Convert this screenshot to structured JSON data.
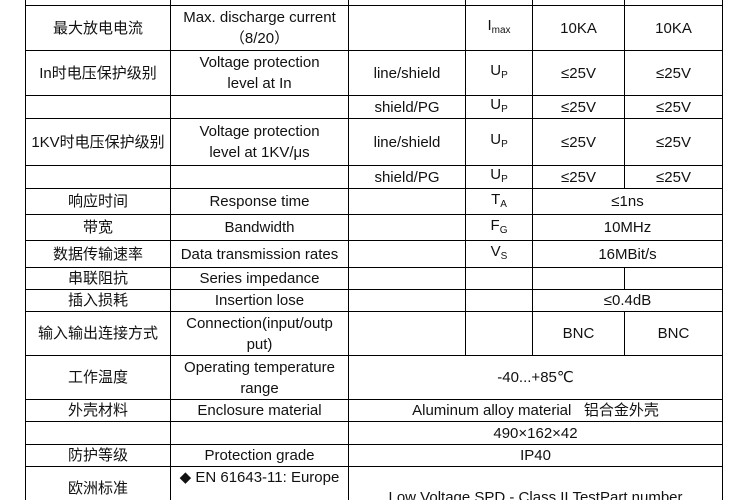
{
  "table": {
    "rows": [
      [
        "最大放电电流",
        [
          "Max. discharge current",
          "（8/20）"
        ],
        {
          "base": "I",
          "sub": "max"
        },
        "10KA",
        "10KA"
      ],
      [
        "In时电压保护级别",
        [
          "Voltage protection",
          "level at In"
        ],
        "line/shield",
        {
          "base": "U",
          "sub": "P"
        },
        "≤25V",
        "≤25V"
      ],
      [
        "shield/PG",
        {
          "base": "U",
          "sub": "P"
        },
        "≤25V",
        "≤25V"
      ],
      [
        "1KV时电压保护级别",
        [
          "Voltage protection",
          "level at 1KV/μs"
        ],
        "line/shield",
        {
          "base": "U",
          "sub": "P"
        },
        "≤25V",
        "≤25V"
      ],
      [
        "shield/PG",
        {
          "base": "U",
          "sub": "P"
        },
        "≤25V",
        "≤25V"
      ],
      [
        "响应时间",
        "Response time",
        {
          "base": "T",
          "sub": "A"
        },
        "≤1ns"
      ],
      [
        "带宽",
        "Bandwidth",
        {
          "base": "F",
          "sub": "G"
        },
        "10MHz"
      ],
      [
        "数据传输速率",
        "Data transmission rates",
        {
          "base": "V",
          "sub": "S"
        },
        "16MBit/s"
      ],
      [
        "串联阻抗",
        "Series impedance"
      ],
      [
        "插入损耗",
        "Insertion lose",
        "≤0.4dB"
      ],
      [
        "输入输出连接方式",
        [
          "Connection(input/outp",
          "put)"
        ],
        "BNC",
        "BNC"
      ],
      [
        "工作温度",
        [
          "Operating temperature",
          "range"
        ],
        "-40...+85℃"
      ],
      [
        "外壳材料",
        "Enclosure material",
        "Aluminum alloy material   铝合金外壳"
      ],
      [
        "490×162×42"
      ],
      [
        "防护等级",
        "Protection grade",
        "IP40"
      ],
      [
        "欧洲标准",
        "◆ EN 61643-11: Europe",
        "Low Voltage SPD - Class II TestPart number"
      ]
    ]
  }
}
